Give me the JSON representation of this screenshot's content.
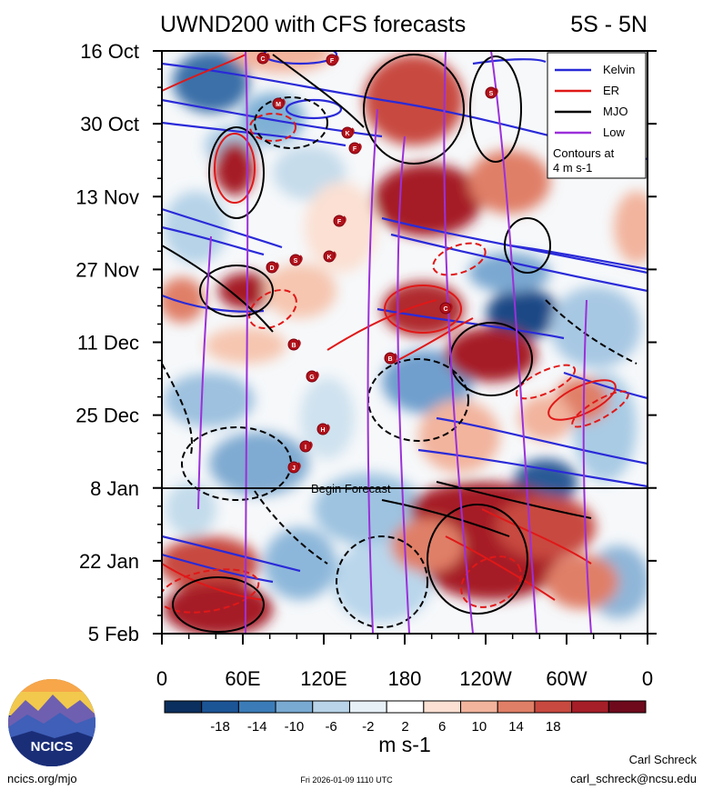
{
  "chart_data": {
    "type": "heatmap",
    "title": "UWND200 with CFS forecasts",
    "subtitle": "5S - 5N",
    "y_ticks": [
      "16 Oct",
      "30 Oct",
      "13 Nov",
      "27 Nov",
      "11 Dec",
      "25 Dec",
      "8 Jan",
      "22 Jan",
      "5 Feb"
    ],
    "x_ticks": [
      "0",
      "60E",
      "120E",
      "180",
      "120W",
      "60W",
      "0"
    ],
    "forecast_label": "Begin Forecast",
    "legend": [
      {
        "label": "Kelvin",
        "color": "#2a2ad8"
      },
      {
        "label": "ER",
        "color": "#e01818"
      },
      {
        "label": "MJO",
        "color": "#000000"
      },
      {
        "label": "Low",
        "color": "#9b30d9"
      }
    ],
    "legend_note": [
      "Contours at",
      "4 m s-1"
    ],
    "colorbar": {
      "levels": [
        "-18",
        "-14",
        "-10",
        "-6",
        "-2",
        "2",
        "6",
        "10",
        "14",
        "18"
      ],
      "colors": [
        "#0b2f5e",
        "#1c5596",
        "#3b7cb8",
        "#79aad2",
        "#b9d4e8",
        "#e7f0f6",
        "#ffffff",
        "#fbe0d3",
        "#f2b49d",
        "#e07f67",
        "#c8493f",
        "#a61e28",
        "#6e0a1c"
      ],
      "units": "m s-1"
    },
    "tc_labels": [
      "C",
      "F",
      "M",
      "S",
      "K",
      "F",
      "F",
      "D",
      "S",
      "K",
      "B",
      "G",
      "H",
      "I",
      "J",
      "C",
      "B"
    ]
  },
  "footer": {
    "logo_text": "NCICS",
    "url": "ncics.org/mjo",
    "timestamp": "Fri 2026-01-09 1110 UTC",
    "author": "Carl Schreck",
    "email": "carl_schreck@ncsu.edu"
  }
}
